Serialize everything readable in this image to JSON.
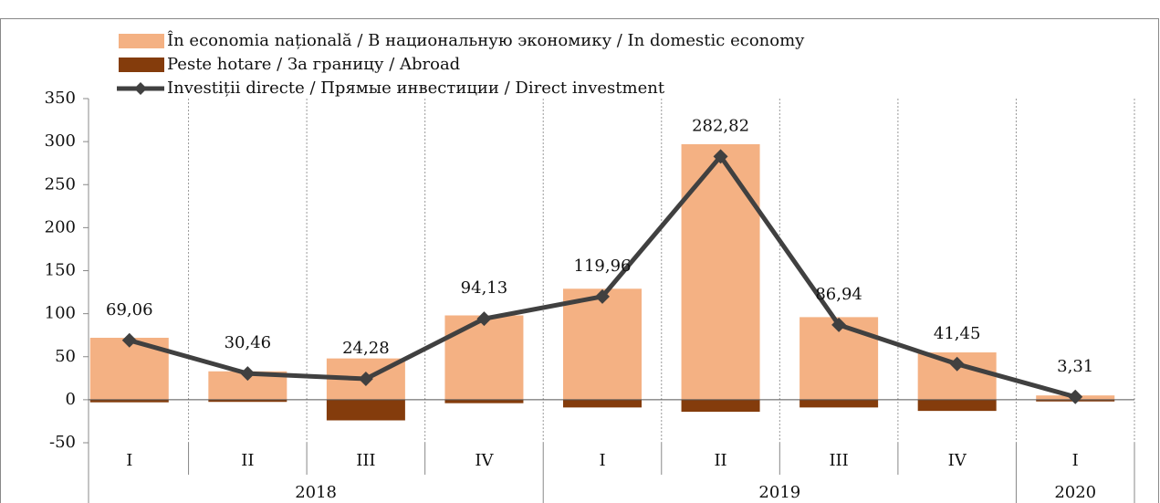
{
  "chart_data": {
    "type": "bar",
    "categories": [
      "I",
      "II",
      "III",
      "IV",
      "I",
      "II",
      "III",
      "IV",
      "I"
    ],
    "category_groups": [
      "2018",
      "2018",
      "2018",
      "2018",
      "2019",
      "2019",
      "2019",
      "2019",
      "2020"
    ],
    "series": [
      {
        "name": "În economia națională / В национальную экономику / In domestic economy",
        "type": "bar",
        "color": "#f4b183",
        "values": [
          72,
          33,
          48,
          98,
          129,
          297,
          96,
          55,
          5
        ]
      },
      {
        "name": "Peste hotare / За границу / Abroad",
        "type": "bar",
        "color": "#843c0c",
        "values": [
          -3,
          -2.5,
          -24,
          -4,
          -9,
          -14,
          -9,
          -13,
          -2
        ]
      },
      {
        "name": "Investiții directe / Прямые инвестиции / Direct investment",
        "type": "line",
        "color": "#404040",
        "values": [
          69.06,
          30.46,
          24.28,
          94.13,
          119.96,
          282.82,
          86.94,
          41.45,
          3.31
        ],
        "value_labels": [
          "69,06",
          "30,46",
          "24,28",
          "94,13",
          "119,96",
          "282,82",
          "86,94",
          "41,45",
          "3,31"
        ]
      }
    ],
    "ylim": [
      -50,
      350
    ],
    "yticks": [
      -50,
      0,
      50,
      100,
      150,
      200,
      250,
      300,
      350
    ],
    "legend": "top-left"
  }
}
